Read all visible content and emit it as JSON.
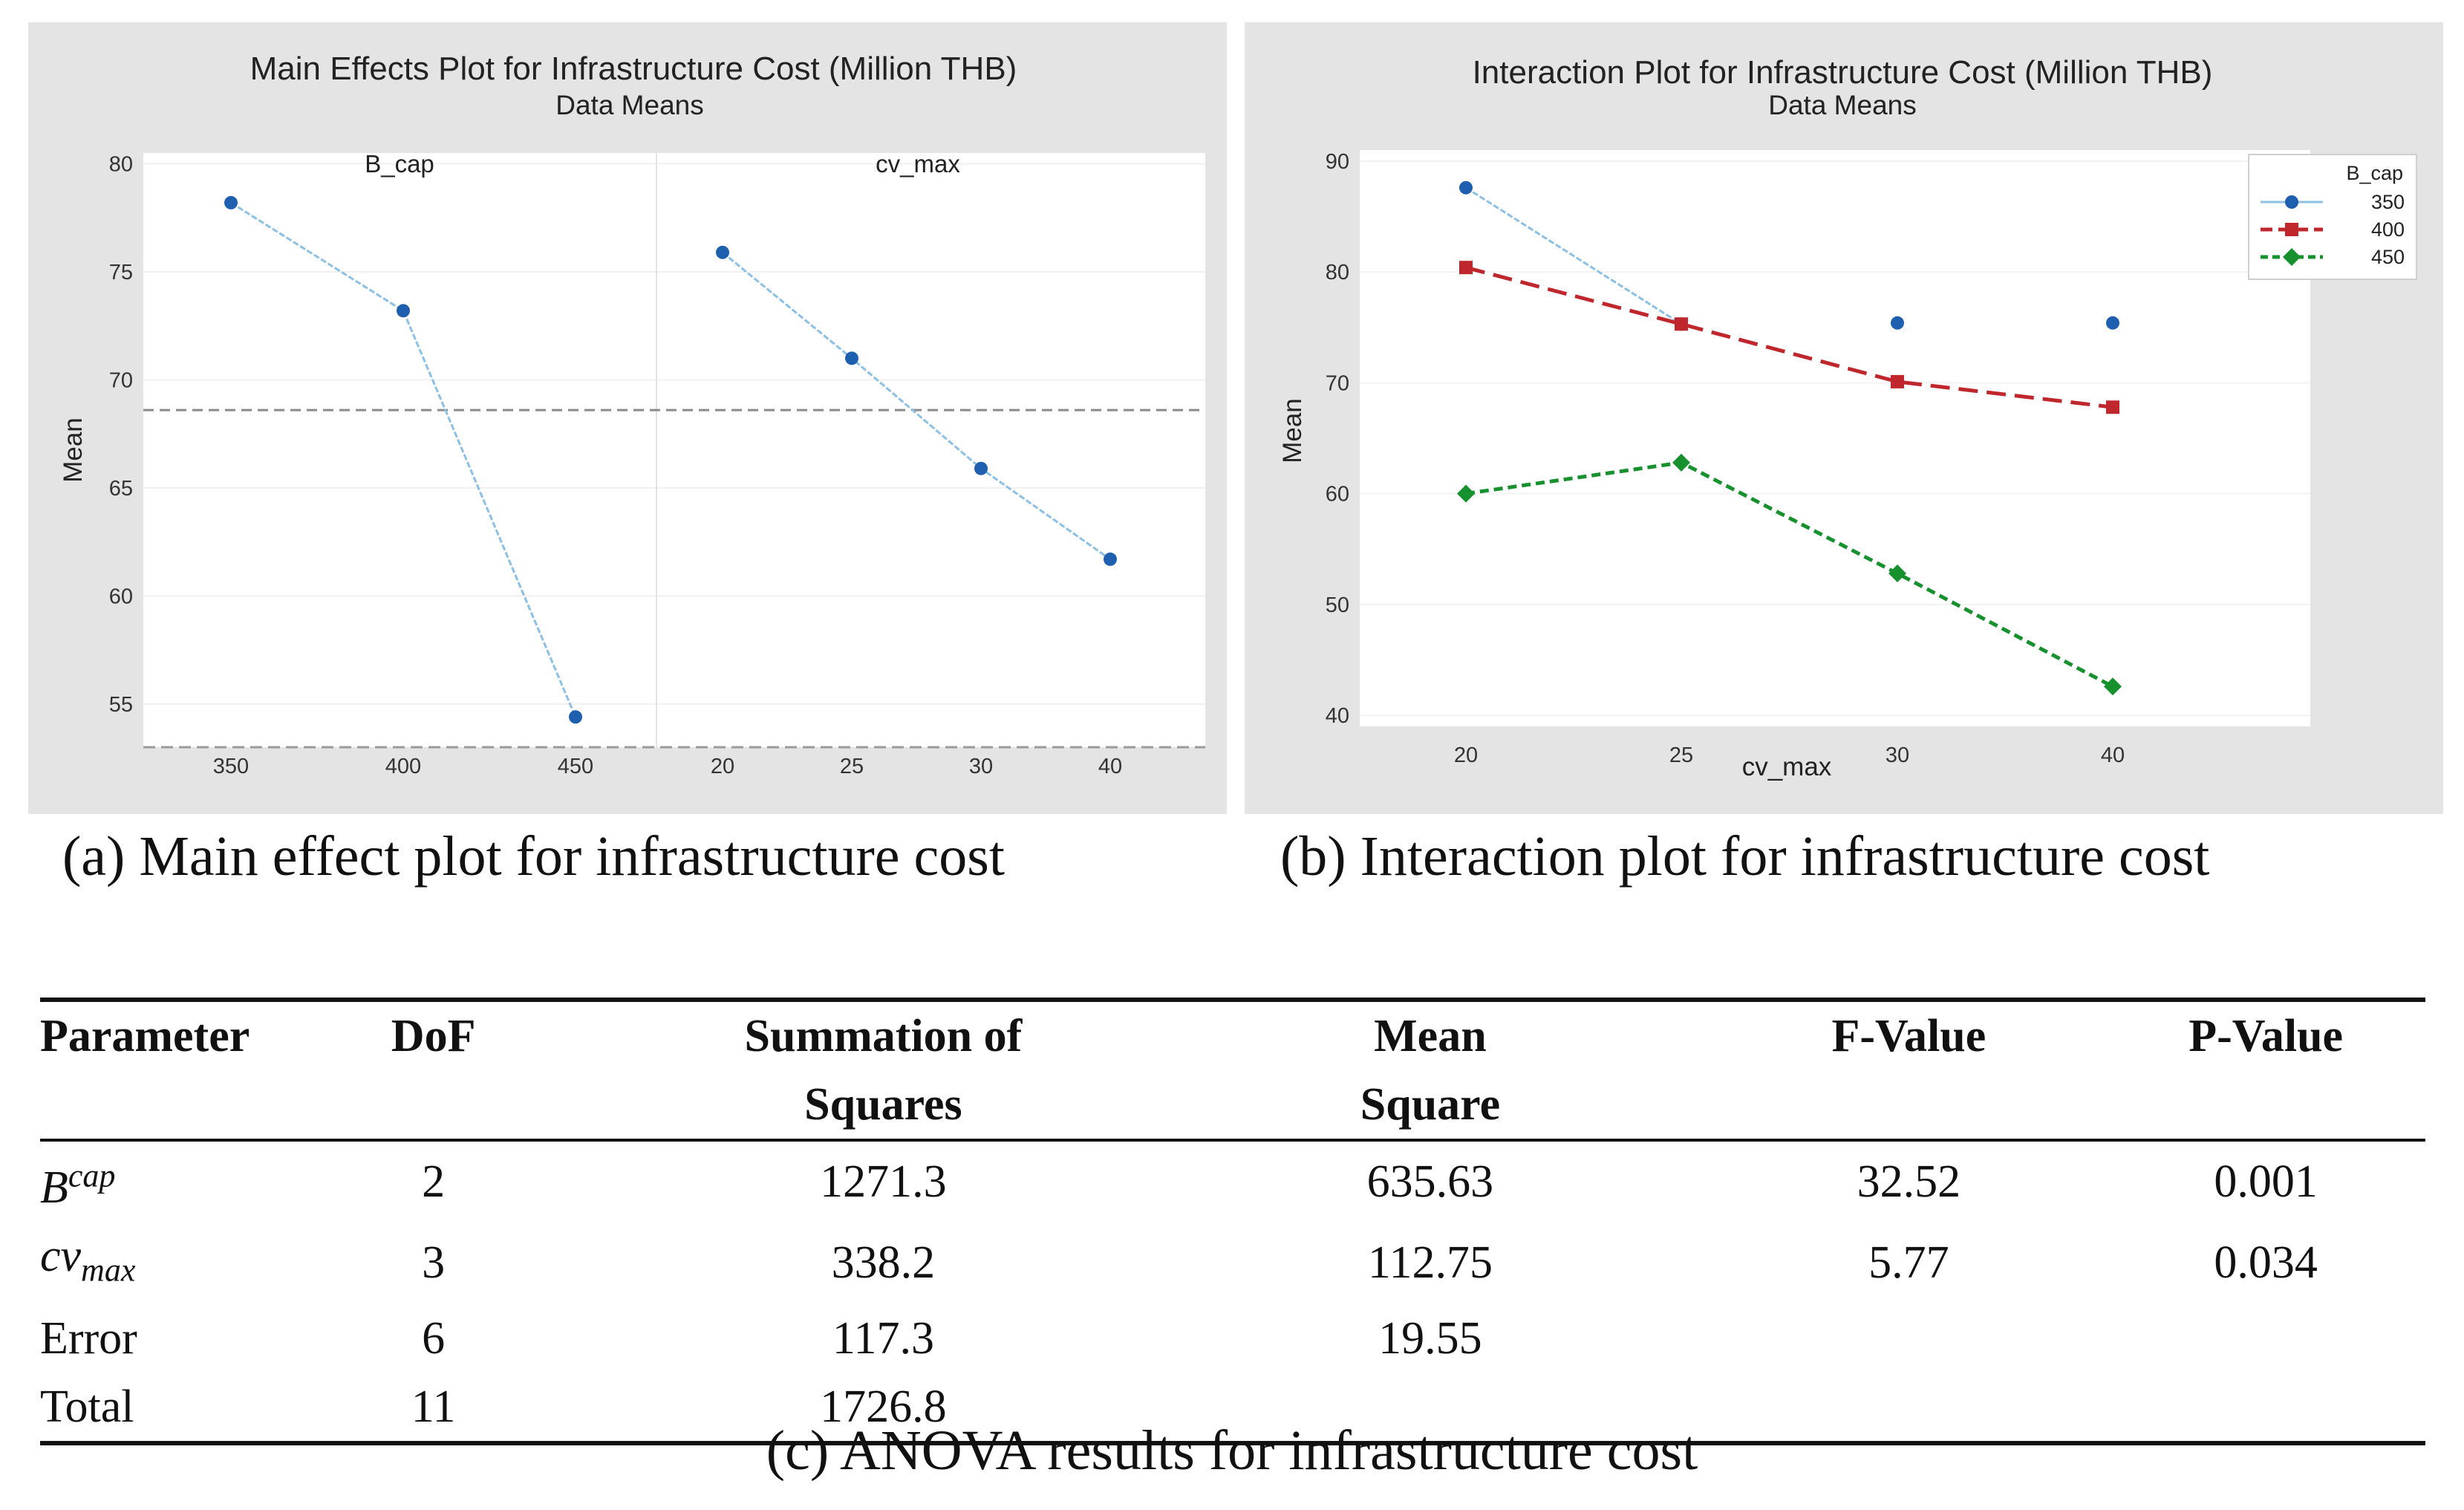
{
  "main_effects": {
    "title": "Main Effects Plot for Infrastructure Cost (Million THB)",
    "subtitle": "Data Means",
    "ylabel": "Mean",
    "caption": "(a) Main effect plot for infrastructure cost"
  },
  "interaction": {
    "title": "Interaction Plot for Infrastructure Cost (Million THB)",
    "subtitle": "Data Means",
    "ylabel": "Mean",
    "xlabel": "cv_max",
    "caption": "(b) Interaction plot for infrastructure cost"
  },
  "anova": {
    "caption": "(c) ANOVA results for infrastructure cost",
    "headers": {
      "parameter": "Parameter",
      "dof": "DoF",
      "ss_line1": "Summation of",
      "ss_line2": "Squares",
      "ms_line1": "Mean",
      "ms_line2": "Square",
      "f": "F-Value",
      "p": "P-Value"
    },
    "rows": [
      {
        "param_base": "B",
        "param_sup": "cap",
        "param_sub": "",
        "dof": "2",
        "ss": "1271.3",
        "ms": "635.63",
        "f": "32.52",
        "p": "0.001"
      },
      {
        "param_base": "cv",
        "param_sup": "",
        "param_sub": "max",
        "dof": "3",
        "ss": "338.2",
        "ms": "112.75",
        "f": "5.77",
        "p": "0.034"
      },
      {
        "param_base": "Error",
        "param_sup": "",
        "param_sub": "",
        "dof": "6",
        "ss": "117.3",
        "ms": "19.55",
        "f": "",
        "p": ""
      },
      {
        "param_base": "Total",
        "param_sup": "",
        "param_sub": "",
        "dof": "11",
        "ss": "1726.8",
        "ms": "",
        "f": "",
        "p": ""
      }
    ]
  },
  "colors": {
    "panel_bg": "#e4e4e4",
    "plot_bg": "#ffffff",
    "blue": "#1f5fb0",
    "blue_line": "#8cc0e4",
    "red": "#c0272d",
    "green": "#17912e",
    "ref_line": "#8a8a8a"
  },
  "chart_data": [
    {
      "type": "line",
      "title": "Main Effects Plot for Infrastructure Cost (Million THB)",
      "subtitle": "Data Means",
      "ylabel": "Mean",
      "ylim": [
        53,
        80.5
      ],
      "yticks": [
        55,
        60,
        65,
        70,
        75,
        80
      ],
      "overall_mean": 68.6,
      "panels": [
        {
          "name": "B_cap",
          "categories": [
            "350",
            "400",
            "450"
          ],
          "values": [
            78.2,
            73.2,
            54.4
          ]
        },
        {
          "name": "cv_max",
          "categories": [
            "20",
            "25",
            "30",
            "40"
          ],
          "values": [
            75.9,
            71.0,
            65.9,
            61.7
          ]
        }
      ]
    },
    {
      "type": "line",
      "title": "Interaction Plot for Infrastructure Cost (Million THB)",
      "subtitle": "Data Means",
      "xlabel": "cv_max",
      "ylabel": "Mean",
      "ylim": [
        39,
        91
      ],
      "yticks": [
        40,
        50,
        60,
        70,
        80,
        90
      ],
      "categories": [
        "20",
        "25",
        "30",
        "40"
      ],
      "legend_title": "B_cap",
      "legend_position": "top-right",
      "series": [
        {
          "name": "350",
          "values": [
            87.6,
            75.3,
            75.4,
            75.4
          ],
          "line_points": 2
        },
        {
          "name": "400",
          "values": [
            80.4,
            75.3,
            70.1,
            67.8
          ]
        },
        {
          "name": "450",
          "values": [
            60.0,
            62.8,
            52.8,
            42.6
          ]
        }
      ]
    }
  ]
}
